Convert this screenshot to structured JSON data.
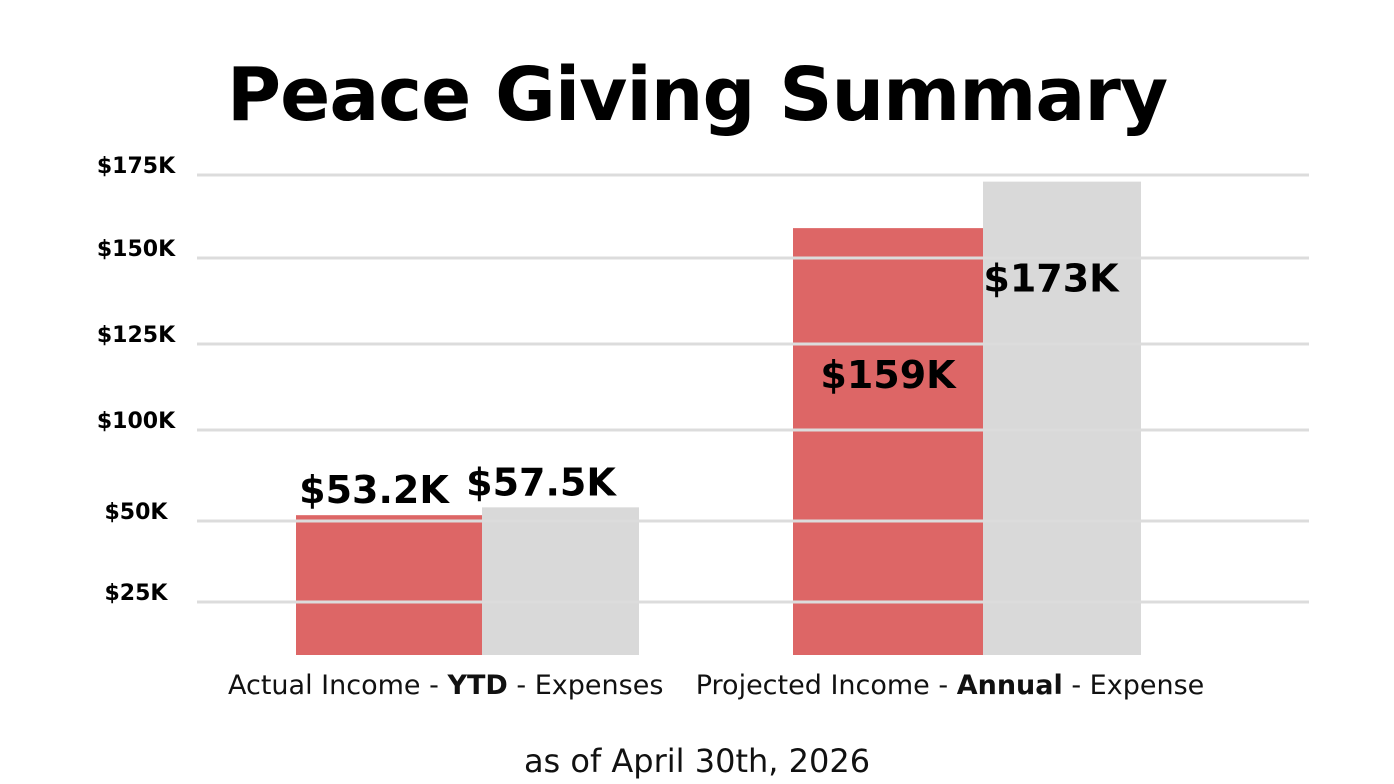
{
  "chart_data": {
    "type": "bar",
    "title": "Peace Giving Summary",
    "subtitle": "as of April 30th, 2026",
    "category_labels": [
      {
        "pre": "Actual Income - ",
        "bold": "YTD",
        "post": " - Expenses"
      },
      {
        "pre": "Projected Income - ",
        "bold": "Annual",
        "post": " - Expense"
      }
    ],
    "series": [
      {
        "values": [
          53.2,
          159
        ],
        "color": "#dd6666",
        "labels": [
          "$53.2K",
          "$159K"
        ]
      },
      {
        "values": [
          57.5,
          173
        ],
        "color": "#d9d9d9",
        "labels": [
          "$57.5K",
          "$173K"
        ]
      }
    ],
    "y_ticks": [
      {
        "value": 25,
        "label": "$25K"
      },
      {
        "value": 50,
        "label": "$50K"
      },
      {
        "value": 100,
        "label": "$100K"
      },
      {
        "value": 125,
        "label": "$125K"
      },
      {
        "value": 150,
        "label": "$150K"
      },
      {
        "value": 175,
        "label": "$175K"
      }
    ],
    "grid": true,
    "legend": "none",
    "gridline_color": "#dcdcdc"
  }
}
